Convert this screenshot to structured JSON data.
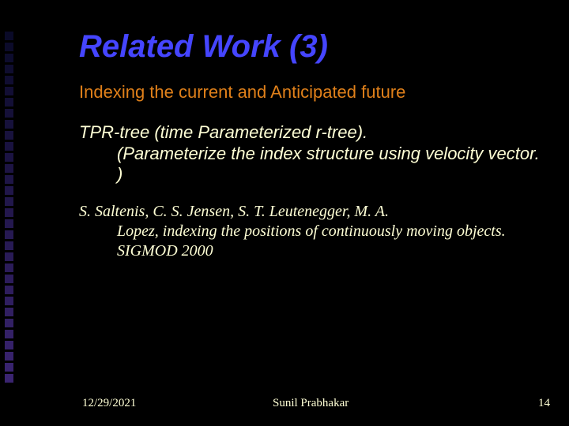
{
  "side_decoration": {
    "count": 32,
    "color_top": "#0a0a28",
    "color_bottom": "#3a2470"
  },
  "slide": {
    "title": "Related Work (3)",
    "subtitle": "Indexing the current and Anticipated future",
    "body_first": "TPR-tree (time Parameterized r-tree).",
    "body_rest": "(Parameterize the index structure using velocity vector. )",
    "citation_first": "S. Saltenis, C. S. Jensen, S. T. Leutenegger, M. A.",
    "citation_rest": "Lopez, indexing the positions of continuously moving objects.  SIGMOD 2000"
  },
  "footer": {
    "date": "12/29/2021",
    "author": "Sunil Prabhakar",
    "page": "14"
  },
  "colors": {
    "background": "#000000",
    "title": "#4545ff",
    "subtitle": "#e0801a",
    "body": "#ffffd5"
  },
  "typography": {
    "title_fontsize": 40,
    "subtitle_fontsize": 22,
    "body_fontsize": 22,
    "citation_fontsize": 20,
    "footer_fontsize": 15,
    "title_italic": true,
    "title_bold": true,
    "body_italic": true
  }
}
